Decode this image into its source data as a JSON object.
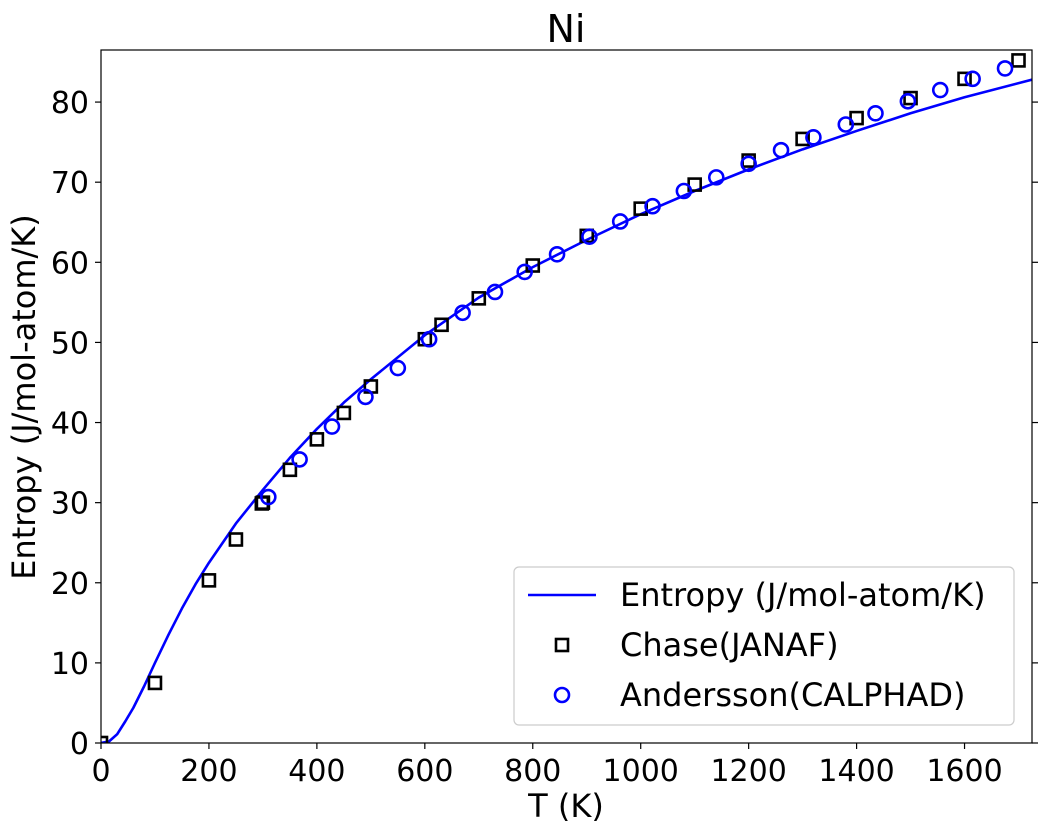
{
  "chart_data": {
    "type": "line",
    "title": "Ni",
    "xlabel": "T (K)",
    "ylabel": "Entropy (J/mol-atom/K)",
    "xlim": [
      0,
      1725
    ],
    "ylim": [
      0,
      86.5
    ],
    "xticks": [
      0,
      200,
      400,
      600,
      800,
      1000,
      1200,
      1400,
      1600
    ],
    "yticks": [
      0,
      10,
      20,
      30,
      40,
      50,
      60,
      70,
      80
    ],
    "grid": false,
    "legend_position": "lower-right",
    "colors": {
      "curve": "#0000ff",
      "chase": "#000000",
      "andersson": "#0000ff"
    },
    "series": [
      {
        "name": "Entropy (J/mol-atom/K)",
        "kind": "line",
        "x": [
          0,
          15,
          30,
          45,
          60,
          80,
          100,
          125,
          150,
          175,
          200,
          250,
          300,
          350,
          400,
          450,
          500,
          600,
          700,
          800,
          900,
          1000,
          1100,
          1200,
          1300,
          1400,
          1500,
          1600,
          1725
        ],
        "y": [
          0,
          0.2,
          1.1,
          2.7,
          4.4,
          7.1,
          10.0,
          13.5,
          16.8,
          19.8,
          22.5,
          27.4,
          31.6,
          35.6,
          39.2,
          42.5,
          45.4,
          50.9,
          55.6,
          59.4,
          62.8,
          66.0,
          68.9,
          71.6,
          74.1,
          76.4,
          78.6,
          80.6,
          82.8
        ]
      },
      {
        "name": "Chase(JANAF)",
        "kind": "scatter",
        "marker": "square",
        "x": [
          0,
          100,
          200,
          250,
          298,
          300,
          350,
          400,
          450,
          500,
          600,
          631,
          700,
          800,
          900,
          1000,
          1100,
          1200,
          1300,
          1400,
          1500,
          1600,
          1700
        ],
        "y": [
          0,
          7.5,
          20.3,
          25.4,
          29.9,
          30.0,
          34.1,
          37.9,
          41.2,
          44.5,
          50.4,
          52.2,
          55.5,
          59.6,
          63.3,
          66.7,
          69.7,
          72.7,
          75.4,
          78.0,
          80.5,
          82.9,
          85.2
        ]
      },
      {
        "name": "Andersson(CALPHAD)",
        "kind": "scatter",
        "marker": "circle",
        "x": [
          310,
          368,
          428,
          490,
          550,
          608,
          670,
          730,
          785,
          845,
          905,
          962,
          1022,
          1080,
          1140,
          1200,
          1260,
          1320,
          1380,
          1435,
          1495,
          1555,
          1615,
          1675
        ],
        "y": [
          30.7,
          35.4,
          39.5,
          43.2,
          46.8,
          50.4,
          53.7,
          56.3,
          58.8,
          61.0,
          63.2,
          65.1,
          67.0,
          68.9,
          70.6,
          72.3,
          74.0,
          75.6,
          77.2,
          78.6,
          80.1,
          81.5,
          82.9,
          84.2
        ]
      }
    ]
  }
}
